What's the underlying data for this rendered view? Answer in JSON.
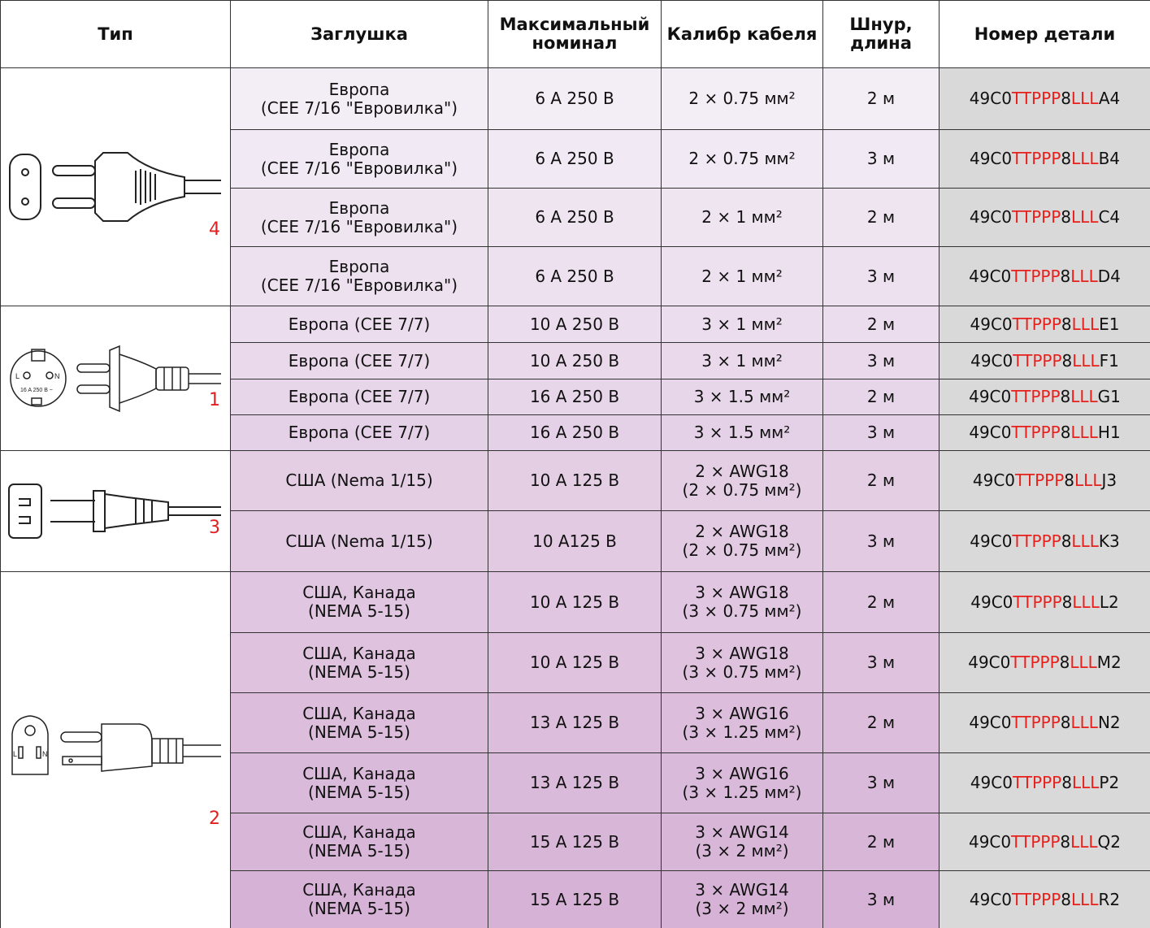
{
  "table": {
    "header": [
      "Тип",
      "Заглушка",
      "Максимальный\nноминал",
      "Калибр кабеля",
      "Шнур,\nдлина",
      "Номер детали"
    ],
    "groups": [
      {
        "type_label": "4",
        "rows": [
          {
            "plug": "Европа\n(CEE 7/16 \"Евровилка\")",
            "rating": "6 A 250 В",
            "cable": "2 × 0.75 мм²",
            "cord": "2 м",
            "part": [
              "49C0",
              "TTPPP",
              "8",
              "LLL",
              "A4"
            ]
          },
          {
            "plug": "Европа\n(CEE 7/16 \"Евровилка\")",
            "rating": "6 A 250 В",
            "cable": "2 × 0.75 мм²",
            "cord": "3 м",
            "part": [
              "49C0",
              "TTPPP",
              "8",
              "LLL",
              "B4"
            ]
          },
          {
            "plug": "Европа\n(CEE 7/16 \"Евровилка\")",
            "rating": "6 A 250 В",
            "cable": "2 × 1 мм²",
            "cord": "2 м",
            "part": [
              "49C0",
              "TTPPP",
              "8",
              "LLL",
              "C4"
            ]
          },
          {
            "plug": "Европа\n(CEE 7/16 \"Евровилка\")",
            "rating": "6 A 250 В",
            "cable": "2 × 1 мм²",
            "cord": "3 м",
            "part": [
              "49C0",
              "TTPPP",
              "8",
              "LLL",
              "D4"
            ]
          }
        ]
      },
      {
        "type_label": "1",
        "icon_labels": [
          "L",
          "N",
          "16 A 250 B ~"
        ],
        "rows": [
          {
            "plug": "Европа (CEE 7/7)",
            "rating": "10 A 250 В",
            "cable": "3 × 1 мм²",
            "cord": "2 м",
            "part": [
              "49C0",
              "TTPPP",
              "8",
              "LLL",
              "E1"
            ]
          },
          {
            "plug": "Европа (CEE 7/7)",
            "rating": "10 A 250 В",
            "cable": "3 × 1 мм²",
            "cord": "3 м",
            "part": [
              "49C0",
              "TTPPP",
              "8",
              "LLL",
              "F1"
            ]
          },
          {
            "plug": "Европа (CEE 7/7)",
            "rating": "16 A 250 В",
            "cable": "3 × 1.5 мм²",
            "cord": "2 м",
            "part": [
              "49C0",
              "TTPPP",
              "8",
              "LLL",
              "G1"
            ]
          },
          {
            "plug": "Европа (CEE 7/7)",
            "rating": "16 A 250 В",
            "cable": "3 × 1.5 мм²",
            "cord": "3 м",
            "part": [
              "49C0",
              "TTPPP",
              "8",
              "LLL",
              "H1"
            ]
          }
        ]
      },
      {
        "type_label": "3",
        "rows": [
          {
            "plug": "США (Nema 1/15)",
            "rating": "10 A 125 В",
            "cable": "2 × AWG18\n(2 × 0.75 мм²)",
            "cord": "2 м",
            "part": [
              "49C0",
              "TTPPP",
              "8",
              "LLL",
              "J3"
            ]
          },
          {
            "plug": "США (Nema 1/15)",
            "rating": "10 A125 В",
            "cable": "2 × AWG18\n(2 × 0.75 мм²)",
            "cord": "3 м",
            "part": [
              "49C0",
              "TTPPP",
              "8",
              "LLL",
              "K3"
            ]
          }
        ]
      },
      {
        "type_label": "2",
        "icon_labels": [
          "L",
          "N"
        ],
        "rows": [
          {
            "plug": "США, Канада\n(NEMA 5-15)",
            "rating": "10 A 125 В",
            "cable": "3 × AWG18\n(3 × 0.75 мм²)",
            "cord": "2 м",
            "part": [
              "49C0",
              "TTPPP",
              "8",
              "LLL",
              "L2"
            ]
          },
          {
            "plug": "США, Канада\n(NEMA 5-15)",
            "rating": "10 A 125 В",
            "cable": "3 × AWG18\n(3 × 0.75 мм²)",
            "cord": "3 м",
            "part": [
              "49C0",
              "TTPPP",
              "8",
              "LLL",
              "M2"
            ]
          },
          {
            "plug": "США, Канада\n(NEMA 5-15)",
            "rating": "13 A 125 В",
            "cable": "3 × AWG16\n(3 × 1.25 мм²)",
            "cord": "2 м",
            "part": [
              "49C0",
              "TTPPP",
              "8",
              "LLL",
              "N2"
            ]
          },
          {
            "plug": "США, Канада\n(NEMA 5-15)",
            "rating": "13 A 125 В",
            "cable": "3 × AWG16\n(3 × 1.25 мм²)",
            "cord": "3 м",
            "part": [
              "49C0",
              "TTPPP",
              "8",
              "LLL",
              "P2"
            ]
          },
          {
            "plug": "США, Канада\n(NEMA 5-15)",
            "rating": "15 A 125 В",
            "cable": "3 × AWG14\n(3 × 2 мм²)",
            "cord": "2 м",
            "part": [
              "49C0",
              "TTPPP",
              "8",
              "LLL",
              "Q2"
            ]
          },
          {
            "plug": "США, Канада\n(NEMA 5-15)",
            "rating": "15 A 125 В",
            "cable": "3 × AWG14\n(3 × 2 мм²)",
            "cord": "3 м",
            "part": [
              "49C0",
              "TTPPP",
              "8",
              "LLL",
              "R2"
            ]
          }
        ]
      }
    ]
  }
}
